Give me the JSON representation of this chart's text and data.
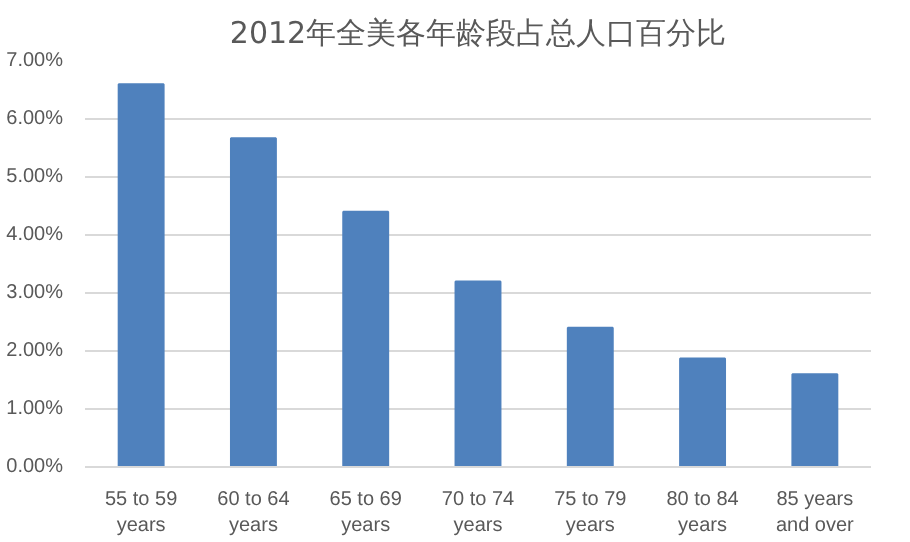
{
  "chart_data": {
    "type": "bar",
    "title": "2012年全美各年龄段占总人口百分比",
    "categories": [
      "55 to 59 years",
      "60 to 64 years",
      "65 to 69 years",
      "70 to 74 years",
      "75 to 79 years",
      "80 to 84 years",
      "85 years and over"
    ],
    "values": [
      6.6,
      5.67,
      4.4,
      3.2,
      2.4,
      1.87,
      1.6
    ],
    "color": "#4f81bd",
    "ylim": [
      0,
      7
    ],
    "yticks": [
      {
        "value": 0,
        "label": "0.00%"
      },
      {
        "value": 1,
        "label": "1.00%"
      },
      {
        "value": 2,
        "label": "2.00%"
      },
      {
        "value": 3,
        "label": "3.00%"
      },
      {
        "value": 4,
        "label": "4.00%"
      },
      {
        "value": 5,
        "label": "5.00%"
      },
      {
        "value": 6,
        "label": "6.00%"
      },
      {
        "value": 7,
        "label": "7.00%"
      }
    ],
    "grid": "y"
  }
}
